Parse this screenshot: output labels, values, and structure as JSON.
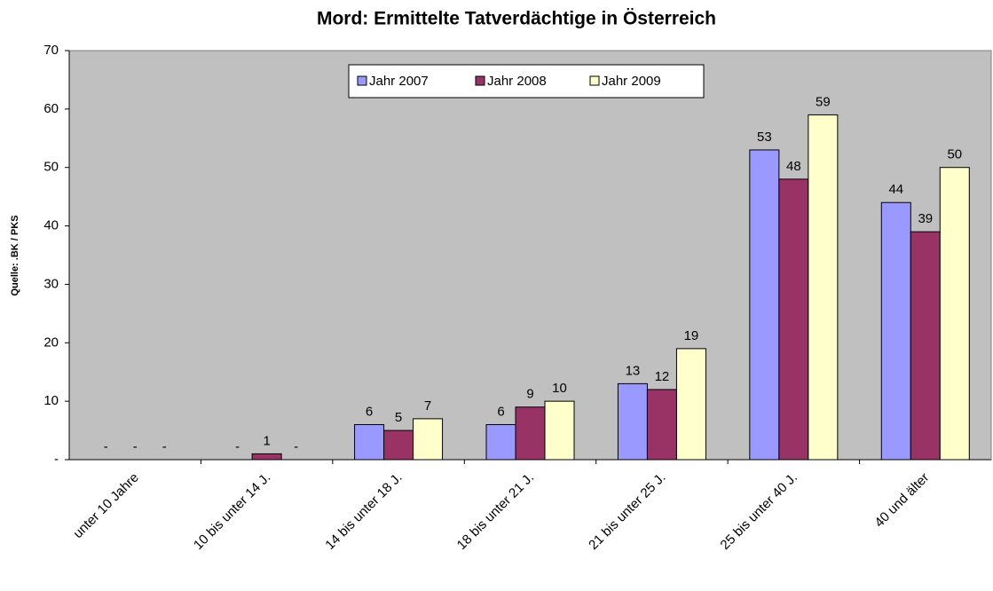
{
  "chart_data": {
    "type": "bar",
    "title": "Mord: Ermittelte Tatverdächtige in Österreich",
    "y_label": "Quelle: .BK / PKS",
    "categories": [
      "unter 10 Jahre",
      "10 bis unter 14 J.",
      "14 bis unter 18 J.",
      "18 bis unter 21 J.",
      "21 bis unter 25 J.",
      "25 bis unter 40 J.",
      "40 und älter"
    ],
    "series": [
      {
        "name": "Jahr 2007",
        "color": "#9999ff",
        "values": [
          0,
          0,
          6,
          6,
          13,
          53,
          44
        ],
        "value_labels": [
          "-",
          "-",
          "6",
          "6",
          "13",
          "53",
          "44"
        ]
      },
      {
        "name": "Jahr 2008",
        "color": "#993366",
        "values": [
          0,
          1,
          5,
          9,
          12,
          48,
          39
        ],
        "value_labels": [
          "-",
          "1",
          "5",
          "9",
          "12",
          "48",
          "39"
        ]
      },
      {
        "name": "Jahr 2009",
        "color": "#ffffcc",
        "values": [
          0,
          0,
          7,
          10,
          19,
          59,
          50
        ],
        "value_labels": [
          "-",
          "-",
          "7",
          "10",
          "19",
          "59",
          "50"
        ]
      }
    ],
    "ylim": [
      0,
      70
    ],
    "yticks": [
      {
        "value": 0,
        "label": "-"
      },
      10,
      20,
      30,
      40,
      50,
      60,
      70
    ],
    "grid": false,
    "legend": "top"
  }
}
